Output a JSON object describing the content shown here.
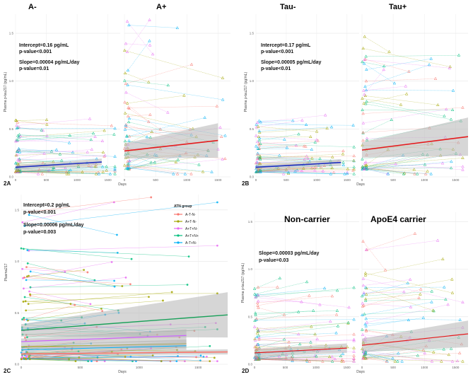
{
  "panel_labels": {
    "a": "2A",
    "b": "2B",
    "c": "2C",
    "d": "2D"
  },
  "colors": {
    "A-T-N-": "#F8766D",
    "A+T-N-": "#A3A500",
    "A+T+N-": "#E76BF3",
    "A+T+N+": "#00BF7D",
    "A-T+N-": "#00B0F6",
    "mean_line_a": "#1f2fbf",
    "mean_line_b": "#e41a1c",
    "fit_green": "#1aa05a",
    "fit_purple": "#cc66ff",
    "ribbon": "#b4b4b4"
  },
  "panels": {
    "a": {
      "facets": [
        "A-",
        "A+"
      ],
      "stats": [
        "Intercept=0.16 pg/mL",
        "p-value<0.001",
        "Slope=0.00004 pg/mL/day",
        "p-value=0.01"
      ],
      "ylabel": "Plasma p-tau217 (pg/mL)",
      "xlabel": "Days"
    },
    "b": {
      "facets": [
        "Tau-",
        "Tau+"
      ],
      "stats": [
        "Intercept=0.17 pg/mL",
        "p-value<0.001",
        "Slope=0.00005 pg/mL/day",
        "p-value<0.01"
      ],
      "ylabel": "Plasma p-tau217 (pg/mL)",
      "xlabel": "Days"
    },
    "c": {
      "facets": [],
      "stats": [
        "Intercept=0.2 pg/mL",
        "p-value<0.001",
        "Slope=0.00006 pg/mL/day",
        "p-value=0.003"
      ],
      "ylabel": "Plasma217",
      "xlabel": "Days"
    },
    "d": {
      "facets": [
        "Non-carrier",
        "ApoE4 carrier"
      ],
      "stats": [
        "Slope=0.00003 pg/mL/day",
        "p-value=0.03"
      ],
      "ylabel": "Plasma p-tau217 (pg/mL)",
      "xlabel": "Days"
    }
  },
  "legend": {
    "title": "ATN group",
    "items": [
      "A-T-N-",
      "A+T-N-",
      "A+T+N-",
      "A+T+N+",
      "A-T+N-"
    ]
  },
  "chart_data": [
    {
      "type": "line",
      "title": "2A",
      "facets": [
        "A-",
        "A+"
      ],
      "xlabel": "Days",
      "ylabel": "Plasma p-tau217 (pg/mL)",
      "xlim": [
        0,
        1700
      ],
      "ylim": [
        0,
        1.7
      ],
      "x_ticks": [
        0,
        500,
        1000,
        1500
      ],
      "y_ticks": [
        0.0,
        0.5,
        1.0,
        1.5
      ],
      "series": [
        {
          "name": "A- fit",
          "x": [
            0,
            1400
          ],
          "y": [
            0.1,
            0.155
          ]
        },
        {
          "name": "A+ fit",
          "x": [
            0,
            1500
          ],
          "y": [
            0.27,
            0.38
          ]
        }
      ]
    },
    {
      "type": "line",
      "title": "2B",
      "facets": [
        "Tau-",
        "Tau+"
      ],
      "xlabel": "Days",
      "ylabel": "Plasma p-tau217 (pg/mL)",
      "xlim": [
        0,
        1700
      ],
      "ylim": [
        0,
        1.7
      ],
      "x_ticks": [
        0,
        500,
        1000,
        1500
      ],
      "y_ticks": [
        0.0,
        0.5,
        1.0,
        1.5
      ],
      "series": [
        {
          "name": "Tau- fit",
          "x": [
            0,
            1400
          ],
          "y": [
            0.1,
            0.15
          ]
        },
        {
          "name": "Tau+ fit",
          "x": [
            0,
            1700
          ],
          "y": [
            0.28,
            0.42
          ]
        }
      ]
    },
    {
      "type": "line",
      "title": "2C",
      "xlabel": "Days",
      "ylabel": "Plasma217",
      "xlim": [
        0,
        1750
      ],
      "ylim": [
        0,
        1.65
      ],
      "x_ticks": [
        0,
        500,
        1000,
        1500
      ],
      "y_ticks": [
        0.0,
        0.5,
        1.0,
        1.5
      ],
      "series": [
        {
          "name": "A+T+N+",
          "x": [
            0,
            1750
          ],
          "y": [
            0.33,
            0.48
          ]
        },
        {
          "name": "A+T+N-",
          "x": [
            0,
            1400
          ],
          "y": [
            0.22,
            0.28
          ]
        },
        {
          "name": "A+T-N-",
          "x": [
            0,
            1400
          ],
          "y": [
            0.17,
            0.2
          ]
        },
        {
          "name": "A-T+N-",
          "x": [
            0,
            1400
          ],
          "y": [
            0.14,
            0.18
          ]
        },
        {
          "name": "A-T-N-",
          "x": [
            0,
            1750
          ],
          "y": [
            0.1,
            0.12
          ]
        }
      ]
    },
    {
      "type": "line",
      "title": "2D",
      "facets": [
        "Non-carrier",
        "ApoE4 carrier"
      ],
      "xlabel": "Days",
      "ylabel": "Plasma p-tau217 (pg/mL)",
      "xlim": [
        0,
        1700
      ],
      "ylim": [
        0,
        1.6
      ],
      "x_ticks": [
        0,
        500,
        1000,
        1500
      ],
      "y_ticks": [
        0.0,
        0.5,
        1.0,
        1.5
      ],
      "series": [
        {
          "name": "Non-carrier fit",
          "x": [
            0,
            1500
          ],
          "y": [
            0.12,
            0.17
          ]
        },
        {
          "name": "ApoE4 carrier fit",
          "x": [
            0,
            1700
          ],
          "y": [
            0.2,
            0.32
          ]
        }
      ]
    }
  ]
}
